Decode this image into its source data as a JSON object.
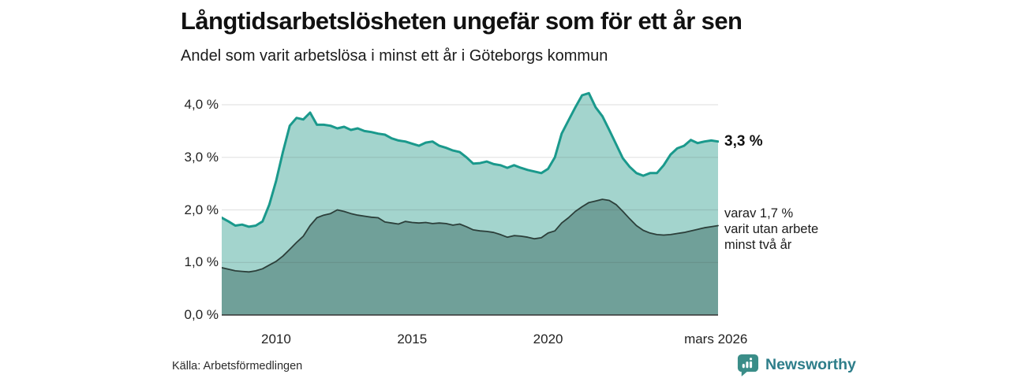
{
  "header": {
    "title": "Långtidsarbetslösheten ungefär som för ett år sen",
    "subtitle": "Andel som varit arbetslösa i minst ett år i Göteborgs kommun"
  },
  "chart_data": {
    "type": "area",
    "title": "Långtidsarbetslösheten ungefär som för ett år sen",
    "subtitle": "Andel som varit arbetslösa i minst ett år i Göteborgs kommun",
    "x_unit": "year (decimal, monthly series)",
    "y_unit": "percent",
    "xlim": [
      2008.0,
      2026.25
    ],
    "ylim": [
      0.0,
      4.42
    ],
    "grid": "horizontal",
    "legend_position": "direct-labels-right",
    "x": [
      2008.0,
      2008.25,
      2008.5,
      2008.75,
      2009.0,
      2009.25,
      2009.5,
      2009.75,
      2010.0,
      2010.25,
      2010.5,
      2010.75,
      2011.0,
      2011.25,
      2011.5,
      2011.75,
      2012.0,
      2012.25,
      2012.5,
      2012.75,
      2013.0,
      2013.25,
      2013.5,
      2013.75,
      2014.0,
      2014.25,
      2014.5,
      2014.75,
      2015.0,
      2015.25,
      2015.5,
      2015.75,
      2016.0,
      2016.25,
      2016.5,
      2016.75,
      2017.0,
      2017.25,
      2017.5,
      2017.75,
      2018.0,
      2018.25,
      2018.5,
      2018.75,
      2019.0,
      2019.25,
      2019.5,
      2019.75,
      2020.0,
      2020.25,
      2020.5,
      2020.75,
      2021.0,
      2021.25,
      2021.5,
      2021.75,
      2022.0,
      2022.25,
      2022.5,
      2022.75,
      2023.0,
      2023.25,
      2023.5,
      2023.75,
      2024.0,
      2024.25,
      2024.5,
      2024.75,
      2025.0,
      2025.25,
      2025.5,
      2025.75,
      2026.0,
      2026.25
    ],
    "series": [
      {
        "name": "Arbetslösa minst ett år",
        "latest_value_label": "3,3 %",
        "line_color": "#1a998c",
        "fill_color": "#a3d4cd",
        "line_width": 3,
        "values": [
          1.85,
          1.78,
          1.7,
          1.72,
          1.68,
          1.7,
          1.78,
          2.1,
          2.55,
          3.1,
          3.6,
          3.75,
          3.72,
          3.85,
          3.62,
          3.62,
          3.6,
          3.55,
          3.58,
          3.52,
          3.55,
          3.5,
          3.48,
          3.45,
          3.43,
          3.36,
          3.32,
          3.3,
          3.26,
          3.22,
          3.28,
          3.3,
          3.22,
          3.18,
          3.13,
          3.1,
          3.0,
          2.88,
          2.89,
          2.92,
          2.87,
          2.85,
          2.8,
          2.85,
          2.8,
          2.76,
          2.73,
          2.7,
          2.78,
          3.0,
          3.45,
          3.7,
          3.95,
          4.18,
          4.22,
          3.95,
          3.78,
          3.52,
          3.25,
          2.98,
          2.82,
          2.7,
          2.65,
          2.7,
          2.7,
          2.85,
          3.05,
          3.17,
          3.22,
          3.33,
          3.27,
          3.3,
          3.32,
          3.3
        ]
      },
      {
        "name": "varav utan arbete minst två år",
        "latest_value_label": "1,7 %",
        "line_color": "#2c3f3a",
        "fill_color": "#70a099",
        "line_width": 1.8,
        "values": [
          0.9,
          0.87,
          0.84,
          0.83,
          0.82,
          0.84,
          0.88,
          0.95,
          1.02,
          1.12,
          1.25,
          1.38,
          1.5,
          1.7,
          1.85,
          1.9,
          1.93,
          2.0,
          1.97,
          1.93,
          1.9,
          1.88,
          1.86,
          1.85,
          1.77,
          1.75,
          1.73,
          1.78,
          1.76,
          1.75,
          1.76,
          1.74,
          1.75,
          1.74,
          1.71,
          1.73,
          1.68,
          1.62,
          1.6,
          1.59,
          1.57,
          1.53,
          1.48,
          1.51,
          1.5,
          1.48,
          1.45,
          1.47,
          1.56,
          1.6,
          1.75,
          1.85,
          1.97,
          2.06,
          2.14,
          2.17,
          2.2,
          2.18,
          2.1,
          1.97,
          1.83,
          1.7,
          1.61,
          1.56,
          1.53,
          1.52,
          1.53,
          1.55,
          1.57,
          1.6,
          1.63,
          1.66,
          1.68,
          1.7
        ]
      }
    ],
    "yticks": [
      {
        "label": "4,0 %",
        "value": 4.0
      },
      {
        "label": "3,0 %",
        "value": 3.0
      },
      {
        "label": "2,0 %",
        "value": 2.0
      },
      {
        "label": "1,0 %",
        "value": 1.0
      },
      {
        "label": "0,0 %",
        "value": 0.0
      }
    ],
    "xticks": [
      {
        "label": "2010",
        "x": 2010.0
      },
      {
        "label": "2015",
        "x": 2015.0
      },
      {
        "label": "2020",
        "x": 2020.0
      },
      {
        "label": "mars 2026",
        "x": 2026.17
      }
    ]
  },
  "annotations": {
    "total": "3,3 %",
    "subset_lines": [
      "varav 1,7 %",
      "varit utan arbete",
      "minst två år"
    ]
  },
  "source": "Källa: Arbetsförmedlingen",
  "brand": {
    "name": "Newsworthy",
    "icon": "newsworthy-logo-icon"
  },
  "colors": {
    "accent_line": "#1a998c",
    "fill_light": "#a3d4cd",
    "fill_dark": "#70a099",
    "line_dark": "#2c3f3a",
    "gridline": "rgba(60,60,60,0.14)",
    "axis": "#333333",
    "brand_teal": "#2e7e8a",
    "logo_bg": "#3a8d88"
  }
}
